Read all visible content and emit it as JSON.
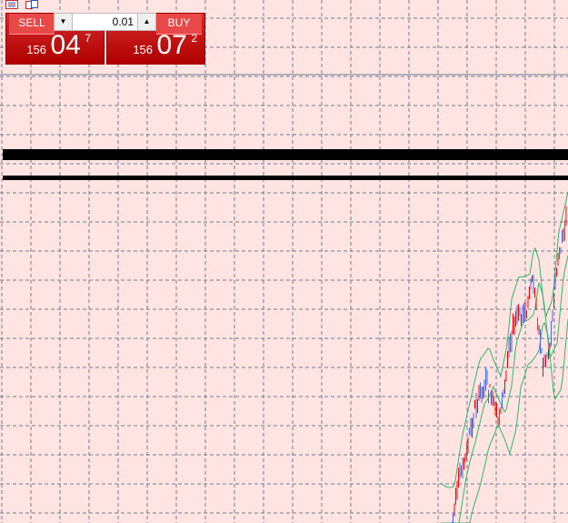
{
  "toolbar": {
    "icons": [
      "list-icon",
      "copy-icon"
    ]
  },
  "trade_panel": {
    "sell": {
      "label": "SELL",
      "price_prefix": "156",
      "price_big": "04",
      "price_sup": "7"
    },
    "buy": {
      "label": "BUY",
      "price_prefix": "156",
      "price_big": "07",
      "price_sup": "2"
    },
    "lot": {
      "value": "0.01",
      "down_icon": "triangle-down-icon",
      "up_icon": "triangle-up-icon"
    }
  },
  "colors": {
    "background": "#ffe4e1",
    "grid": "#6e8098",
    "bull": "#ff0000",
    "bear": "#4169e1",
    "bands": "#2eb86b",
    "panel": "#c01010"
  }
}
